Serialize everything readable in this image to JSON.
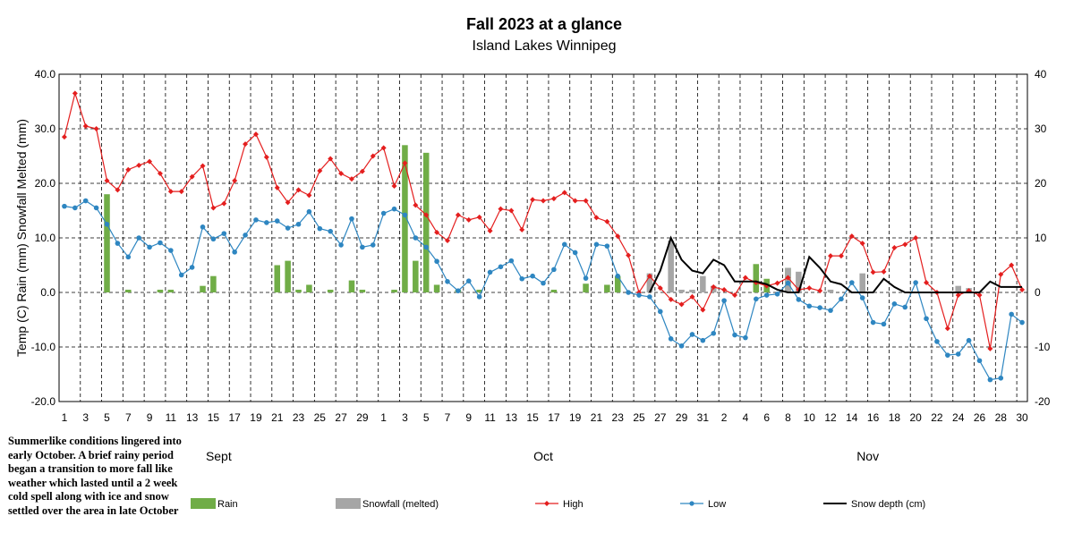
{
  "chart_data": {
    "type": "bar+line",
    "title": "Fall 2023 at a glance",
    "subtitle": "Island Lakes Winnipeg",
    "ylabel": "Temp (C) Rain (mm) Snowfall Melted (mm)",
    "ylim": [
      -20,
      40
    ],
    "y2lim": [
      -20,
      40
    ],
    "yticks": [
      "40.0",
      "30.0",
      "20.0",
      "10.0",
      "0.0",
      "-10.0",
      "-20.0"
    ],
    "y2ticks": [
      "40",
      "30",
      "20",
      "10",
      "0",
      "-10",
      "-20"
    ],
    "grid": true,
    "months": [
      "Sept",
      "Oct",
      "Nov"
    ],
    "x_tick_labels": [
      "1",
      "3",
      "5",
      "7",
      "9",
      "11",
      "13",
      "15",
      "17",
      "19",
      "21",
      "23",
      "25",
      "27",
      "29",
      "1",
      "3",
      "5",
      "7",
      "9",
      "11",
      "13",
      "15",
      "17",
      "19",
      "21",
      "23",
      "25",
      "27",
      "29",
      "31",
      "2",
      "4",
      "6",
      "8",
      "10",
      "12",
      "14",
      "16",
      "18",
      "20",
      "22",
      "24",
      "26",
      "28",
      "30"
    ],
    "days": 91,
    "series": [
      {
        "name": "Rain",
        "type": "bar",
        "color": "#70ad47",
        "values": [
          0,
          0,
          0,
          0,
          18,
          0,
          0.5,
          0,
          0,
          0.5,
          0.5,
          0,
          0,
          1.2,
          3,
          0,
          0,
          0,
          0,
          0,
          5,
          5.8,
          0.5,
          1.4,
          0,
          0.5,
          0,
          2.2,
          0.5,
          0,
          0,
          0.5,
          27,
          5.8,
          25.6,
          1.4,
          0,
          0.5,
          0,
          0.5,
          0,
          0,
          0,
          0,
          0,
          0,
          0.5,
          0,
          0,
          1.6,
          0,
          1.4,
          3,
          0,
          0,
          0,
          0,
          0,
          0,
          0,
          0,
          0,
          0,
          0,
          0,
          5.2,
          2.5,
          0,
          4.5,
          0,
          0,
          0,
          0,
          0,
          0,
          0,
          0,
          0,
          0,
          0,
          0,
          0,
          0,
          0,
          0,
          0,
          0,
          0,
          0,
          0,
          0
        ]
      },
      {
        "name": "Snowfall (melted)",
        "type": "bar",
        "color": "#a6a6a6",
        "values": [
          0,
          0,
          0,
          0,
          0,
          0,
          0,
          0,
          0,
          0,
          0,
          0,
          0,
          0,
          0,
          0,
          0,
          0,
          0,
          0,
          0,
          0,
          0,
          0,
          0,
          0,
          0,
          0,
          0,
          0,
          0,
          0,
          0,
          0,
          0,
          0,
          0,
          0,
          0,
          0,
          0,
          0,
          0,
          0,
          0,
          0,
          0,
          0,
          0,
          0,
          0,
          0,
          0,
          0,
          0,
          3.5,
          0,
          9.5,
          0.5,
          0.5,
          3,
          1.2,
          0,
          0,
          0,
          0,
          0,
          0,
          4.5,
          3.8,
          0,
          0,
          0.5,
          0,
          0,
          3.5,
          0,
          0,
          0,
          0,
          0,
          0,
          0,
          0,
          1.2,
          0.8,
          0,
          0,
          0,
          0,
          0
        ]
      },
      {
        "name": "High",
        "type": "line",
        "color": "#e41e1e",
        "values": [
          28.5,
          36.5,
          30.5,
          30,
          20.5,
          18.8,
          22.5,
          23.3,
          24,
          21.8,
          18.5,
          18.5,
          21.2,
          23.2,
          15.5,
          16.3,
          20.5,
          27.2,
          29,
          24.8,
          19.2,
          16.5,
          18.8,
          17.8,
          22.3,
          24.5,
          21.8,
          20.8,
          22.2,
          25,
          26.5,
          19.5,
          23.7,
          16,
          14.2,
          11,
          9.5,
          14.2,
          13.3,
          13.8,
          11.3,
          15.3,
          15,
          11.5,
          17,
          16.8,
          17.2,
          18.3,
          16.8,
          16.8,
          13.7,
          13,
          10.3,
          6.8,
          0,
          3,
          0.8,
          -1.3,
          -2.2,
          -0.8,
          -3.2,
          1,
          0.5,
          -0.5,
          2.7,
          1.8,
          1.2,
          1.7,
          2.7,
          0.5,
          0.8,
          0.3,
          6.7,
          6.7,
          10.3,
          9,
          3.7,
          3.8,
          8.2,
          8.8,
          10,
          1.8,
          0,
          -6.6,
          -0.5,
          0.3,
          -0.5,
          -10.3,
          3.3,
          5,
          0.5
        ]
      },
      {
        "name": "Low",
        "type": "line",
        "color": "#2e86c1",
        "values": [
          15.8,
          15.5,
          16.8,
          15.5,
          12.5,
          9,
          6.5,
          10,
          8.3,
          9.1,
          7.7,
          3.2,
          4.6,
          12,
          9.8,
          10.8,
          7.4,
          10.5,
          13.3,
          12.8,
          13.1,
          11.8,
          12.5,
          14.8,
          11.7,
          11.2,
          8.7,
          13.5,
          8.3,
          8.7,
          14.5,
          15.3,
          14.2,
          10,
          8.3,
          5.7,
          2,
          0.3,
          2.1,
          -0.8,
          3.7,
          4.7,
          5.8,
          2.5,
          3,
          1.7,
          4.2,
          8.8,
          7.3,
          2.6,
          8.8,
          8.5,
          3,
          0,
          -0.5,
          -0.8,
          -3.5,
          -8.5,
          -9.8,
          -7.7,
          -8.8,
          -7.5,
          -1.5,
          -7.8,
          -8.3,
          -1.2,
          -0.5,
          -0.3,
          1.7,
          -1.3,
          -2.5,
          -2.8,
          -3.3,
          -1.2,
          1.8,
          -1,
          -5.5,
          -5.8,
          -2.1,
          -2.7,
          1.8,
          -4.8,
          -9,
          -11.5,
          -11.3,
          -8.8,
          -12.5,
          -16,
          -15.7,
          -4,
          -5.5
        ]
      },
      {
        "name": "Snow depth (cm)",
        "type": "line",
        "color": "#000000",
        "values": [
          null,
          null,
          null,
          null,
          null,
          null,
          null,
          null,
          null,
          null,
          null,
          null,
          null,
          null,
          null,
          null,
          null,
          null,
          null,
          null,
          null,
          null,
          null,
          null,
          null,
          null,
          null,
          null,
          null,
          null,
          null,
          null,
          null,
          null,
          null,
          null,
          null,
          null,
          null,
          null,
          null,
          null,
          null,
          null,
          null,
          null,
          null,
          null,
          null,
          null,
          null,
          null,
          null,
          null,
          null,
          0,
          4,
          10,
          6,
          4,
          3.5,
          6,
          5,
          2,
          2,
          2,
          1.5,
          0.5,
          0,
          0,
          6.5,
          4.5,
          2,
          1.5,
          0,
          0,
          0,
          2.5,
          1,
          0,
          0,
          0,
          0,
          0,
          0,
          0,
          0,
          2,
          1,
          1,
          1
        ]
      }
    ],
    "annotation": "Summerlike conditions lingered into early October. A brief rainy period began a transition to more fall like weather which lasted until a 2 week cold spell along with ice and snow settled over the area in late October"
  }
}
